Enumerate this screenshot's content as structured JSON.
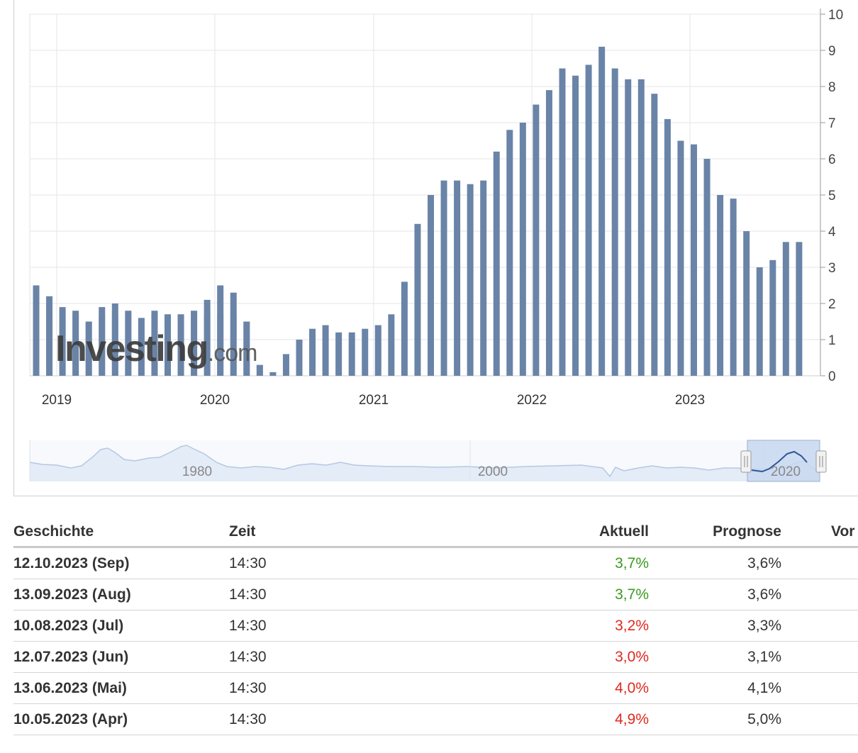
{
  "watermark": {
    "brand": "Investing",
    "suffix": ".com"
  },
  "colors": {
    "bar_actual": "#6a84a8",
    "bar_forecast": "#b3c3d9",
    "up": "#3a9a1f",
    "down": "#e0281d",
    "grid": "#e6e6e6"
  },
  "chart_data": {
    "type": "bar",
    "y_axis": {
      "min": 0,
      "max": 10,
      "ticks": [
        0,
        1,
        2,
        3,
        4,
        5,
        6,
        7,
        8,
        9,
        10
      ],
      "position": "right"
    },
    "x_year_labels": [
      "2019",
      "2020",
      "2021",
      "2022",
      "2023"
    ],
    "series": [
      {
        "name": "Aktuell",
        "values": [
          2.5,
          2.2,
          1.9,
          1.8,
          1.5,
          1.9,
          2.0,
          1.8,
          1.6,
          1.8,
          1.7,
          1.7,
          1.8,
          2.1,
          2.5,
          2.3,
          1.5,
          0.3,
          0.1,
          0.6,
          1.0,
          1.3,
          1.4,
          1.2,
          1.2,
          1.3,
          1.4,
          1.7,
          2.6,
          4.2,
          5.0,
          5.4,
          5.4,
          5.3,
          5.4,
          6.2,
          6.8,
          7.0,
          7.5,
          7.9,
          8.5,
          8.3,
          8.6,
          9.1,
          8.5,
          8.2,
          8.2,
          7.8,
          7.1,
          6.5,
          6.4,
          6.0,
          5.0,
          4.9,
          4.0,
          3.0,
          3.2,
          3.7,
          3.7
        ]
      },
      {
        "name": "Prognose",
        "values": [
          1.7,
          1.7,
          1.7,
          1.7,
          1.5,
          1.7,
          1.7,
          1.7,
          1.6,
          1.7,
          1.7,
          1.7,
          1.7,
          1.7,
          1.7,
          1.7,
          1.5,
          0.3,
          0.1,
          null,
          null,
          null,
          null,
          null,
          null,
          null,
          null,
          null,
          null,
          null,
          null,
          null,
          null,
          null,
          null,
          null,
          null,
          null,
          null,
          null,
          null,
          null,
          null,
          null,
          null,
          null,
          null,
          null,
          null,
          null,
          null,
          null,
          null,
          null,
          null,
          null,
          null,
          null,
          null
        ]
      }
    ],
    "navigator": {
      "labels": [
        "1980",
        "2000",
        "2020"
      ]
    }
  },
  "table": {
    "headers": {
      "date": "Geschichte",
      "time": "Zeit",
      "actual": "Aktuell",
      "forecast": "Prognose",
      "previous": "Vor"
    },
    "rows": [
      {
        "date": "12.10.2023 (Sep)",
        "time": "14:30",
        "actual": "3,7%",
        "trend": "up",
        "forecast": "3,6%"
      },
      {
        "date": "13.09.2023 (Aug)",
        "time": "14:30",
        "actual": "3,7%",
        "trend": "up",
        "forecast": "3,6%"
      },
      {
        "date": "10.08.2023 (Jul)",
        "time": "14:30",
        "actual": "3,2%",
        "trend": "down",
        "forecast": "3,3%"
      },
      {
        "date": "12.07.2023 (Jun)",
        "time": "14:30",
        "actual": "3,0%",
        "trend": "down",
        "forecast": "3,1%"
      },
      {
        "date": "13.06.2023 (Mai)",
        "time": "14:30",
        "actual": "4,0%",
        "trend": "down",
        "forecast": "4,1%"
      },
      {
        "date": "10.05.2023 (Apr)",
        "time": "14:30",
        "actual": "4,9%",
        "trend": "down",
        "forecast": "5,0%"
      }
    ]
  }
}
